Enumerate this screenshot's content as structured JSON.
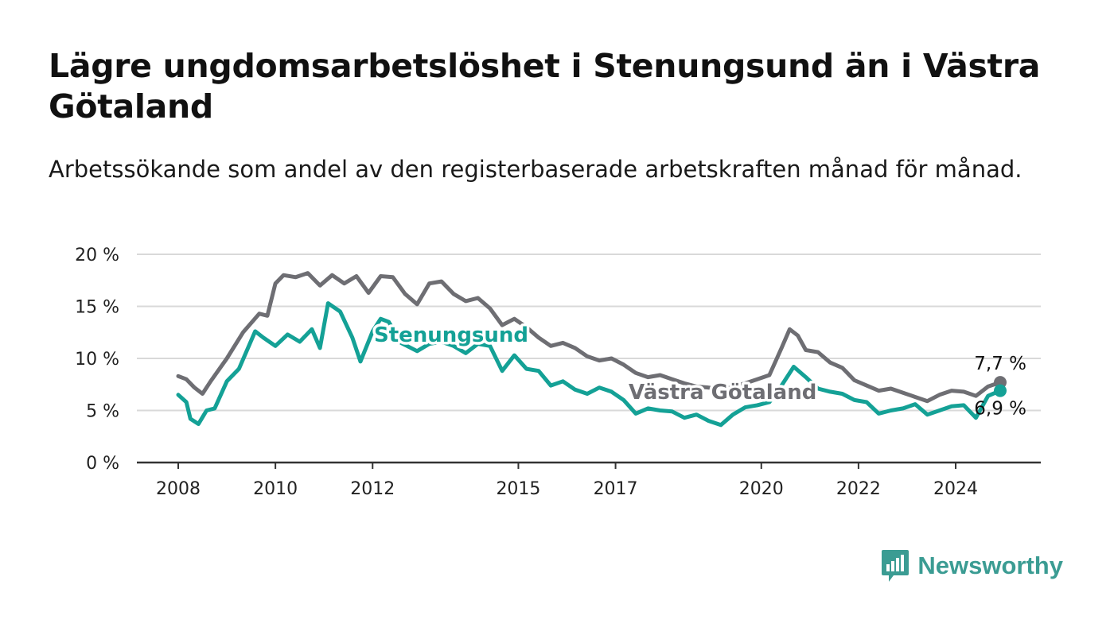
{
  "title": "Lägre ungdomsarbetslöshet i Stenungsund än i Västra Götaland",
  "subtitle": "Arbetssökande som andel av den registerbaserade arbetskraften månad för månad.",
  "logo": {
    "text": "Newsworthy",
    "icon": "bar-chart-icon"
  },
  "colors": {
    "stenungsund": "#14a196",
    "vastra_gotaland": "#6e6e73",
    "grid": "#d9d9d9",
    "axis": "#333333"
  },
  "chart_data": {
    "type": "line",
    "title": "Lägre ungdomsarbetslöshet i Stenungsund än i Västra Götaland",
    "subtitle": "Arbetssökande som andel av den registerbaserade arbetskraften månad för månad.",
    "x_range": [
      "2008-01",
      "2024-12"
    ],
    "x_ticks": [
      "2008",
      "2010",
      "2012",
      "2015",
      "2017",
      "2020",
      "2022",
      "2024"
    ],
    "y_ticks": [
      "0 %",
      "5 %",
      "10 %",
      "15 %",
      "20 %"
    ],
    "ylim": [
      0,
      20
    ],
    "grid": "horizontal",
    "series": [
      {
        "name": "Västra Götaland",
        "label": "Västra Götaland",
        "end_label": "7,7 %",
        "points": [
          [
            "2008-01",
            8.3
          ],
          [
            "2008-03",
            8.0
          ],
          [
            "2008-05",
            7.2
          ],
          [
            "2008-07",
            6.6
          ],
          [
            "2008-09",
            7.8
          ],
          [
            "2009-01",
            10.0
          ],
          [
            "2009-05",
            12.5
          ],
          [
            "2009-09",
            14.3
          ],
          [
            "2009-11",
            14.1
          ],
          [
            "2010-01",
            17.2
          ],
          [
            "2010-03",
            18.0
          ],
          [
            "2010-06",
            17.8
          ],
          [
            "2010-09",
            18.2
          ],
          [
            "2010-12",
            17.0
          ],
          [
            "2011-03",
            18.0
          ],
          [
            "2011-06",
            17.2
          ],
          [
            "2011-09",
            17.9
          ],
          [
            "2011-12",
            16.3
          ],
          [
            "2012-03",
            17.9
          ],
          [
            "2012-06",
            17.8
          ],
          [
            "2012-09",
            16.2
          ],
          [
            "2012-12",
            15.2
          ],
          [
            "2013-03",
            17.2
          ],
          [
            "2013-06",
            17.4
          ],
          [
            "2013-09",
            16.2
          ],
          [
            "2013-12",
            15.5
          ],
          [
            "2014-03",
            15.8
          ],
          [
            "2014-06",
            14.8
          ],
          [
            "2014-09",
            13.2
          ],
          [
            "2014-12",
            13.8
          ],
          [
            "2015-03",
            13.0
          ],
          [
            "2015-06",
            12.0
          ],
          [
            "2015-09",
            11.2
          ],
          [
            "2015-12",
            11.5
          ],
          [
            "2016-03",
            11.0
          ],
          [
            "2016-06",
            10.2
          ],
          [
            "2016-09",
            9.8
          ],
          [
            "2016-12",
            10.0
          ],
          [
            "2017-03",
            9.4
          ],
          [
            "2017-06",
            8.6
          ],
          [
            "2017-09",
            8.2
          ],
          [
            "2017-12",
            8.4
          ],
          [
            "2018-03",
            8.0
          ],
          [
            "2018-06",
            7.6
          ],
          [
            "2018-09",
            7.3
          ],
          [
            "2018-12",
            7.2
          ],
          [
            "2019-03",
            7.0
          ],
          [
            "2019-06",
            7.3
          ],
          [
            "2019-09",
            7.6
          ],
          [
            "2019-12",
            8.0
          ],
          [
            "2020-03",
            8.4
          ],
          [
            "2020-06",
            11.0
          ],
          [
            "2020-08",
            12.8
          ],
          [
            "2020-10",
            12.2
          ],
          [
            "2020-12",
            10.8
          ],
          [
            "2021-03",
            10.6
          ],
          [
            "2021-06",
            9.6
          ],
          [
            "2021-09",
            9.1
          ],
          [
            "2021-12",
            7.9
          ],
          [
            "2022-03",
            7.4
          ],
          [
            "2022-06",
            6.9
          ],
          [
            "2022-09",
            7.1
          ],
          [
            "2022-12",
            6.7
          ],
          [
            "2023-03",
            6.3
          ],
          [
            "2023-06",
            5.9
          ],
          [
            "2023-09",
            6.5
          ],
          [
            "2023-12",
            6.9
          ],
          [
            "2024-03",
            6.8
          ],
          [
            "2024-06",
            6.4
          ],
          [
            "2024-09",
            7.3
          ],
          [
            "2024-12",
            7.7
          ]
        ]
      },
      {
        "name": "Stenungsund",
        "label": "Stenungsund",
        "end_label": "6,9 %",
        "points": [
          [
            "2008-01",
            6.5
          ],
          [
            "2008-03",
            5.8
          ],
          [
            "2008-04",
            4.2
          ],
          [
            "2008-06",
            3.7
          ],
          [
            "2008-08",
            5.0
          ],
          [
            "2008-10",
            5.2
          ],
          [
            "2009-01",
            7.8
          ],
          [
            "2009-04",
            9.0
          ],
          [
            "2009-08",
            12.6
          ],
          [
            "2009-10",
            12.0
          ],
          [
            "2010-01",
            11.2
          ],
          [
            "2010-04",
            12.3
          ],
          [
            "2010-07",
            11.6
          ],
          [
            "2010-10",
            12.8
          ],
          [
            "2010-12",
            11.0
          ],
          [
            "2011-02",
            15.3
          ],
          [
            "2011-05",
            14.5
          ],
          [
            "2011-08",
            12.0
          ],
          [
            "2011-10",
            9.7
          ],
          [
            "2012-01",
            12.6
          ],
          [
            "2012-03",
            13.8
          ],
          [
            "2012-05",
            13.5
          ],
          [
            "2012-08",
            11.5
          ],
          [
            "2012-12",
            10.7
          ],
          [
            "2013-03",
            11.4
          ],
          [
            "2013-06",
            11.6
          ],
          [
            "2013-09",
            11.2
          ],
          [
            "2013-12",
            10.5
          ],
          [
            "2014-03",
            11.4
          ],
          [
            "2014-06",
            11.2
          ],
          [
            "2014-09",
            8.8
          ],
          [
            "2014-12",
            10.3
          ],
          [
            "2015-03",
            9.0
          ],
          [
            "2015-06",
            8.8
          ],
          [
            "2015-09",
            7.4
          ],
          [
            "2015-12",
            7.8
          ],
          [
            "2016-03",
            7.0
          ],
          [
            "2016-06",
            6.6
          ],
          [
            "2016-09",
            7.2
          ],
          [
            "2016-12",
            6.8
          ],
          [
            "2017-03",
            6.0
          ],
          [
            "2017-06",
            4.7
          ],
          [
            "2017-09",
            5.2
          ],
          [
            "2017-12",
            5.0
          ],
          [
            "2018-03",
            4.9
          ],
          [
            "2018-06",
            4.3
          ],
          [
            "2018-09",
            4.6
          ],
          [
            "2018-12",
            4.0
          ],
          [
            "2019-03",
            3.6
          ],
          [
            "2019-06",
            4.6
          ],
          [
            "2019-09",
            5.3
          ],
          [
            "2019-12",
            5.5
          ],
          [
            "2020-03",
            5.8
          ],
          [
            "2020-06",
            7.4
          ],
          [
            "2020-09",
            9.2
          ],
          [
            "2020-12",
            8.2
          ],
          [
            "2021-03",
            7.1
          ],
          [
            "2021-06",
            6.8
          ],
          [
            "2021-09",
            6.6
          ],
          [
            "2021-12",
            6.0
          ],
          [
            "2022-03",
            5.8
          ],
          [
            "2022-06",
            4.7
          ],
          [
            "2022-09",
            5.0
          ],
          [
            "2022-12",
            5.2
          ],
          [
            "2023-03",
            5.6
          ],
          [
            "2023-06",
            4.6
          ],
          [
            "2023-09",
            5.0
          ],
          [
            "2023-12",
            5.4
          ],
          [
            "2024-03",
            5.5
          ],
          [
            "2024-06",
            4.3
          ],
          [
            "2024-09",
            6.4
          ],
          [
            "2024-12",
            6.9
          ]
        ]
      }
    ]
  }
}
